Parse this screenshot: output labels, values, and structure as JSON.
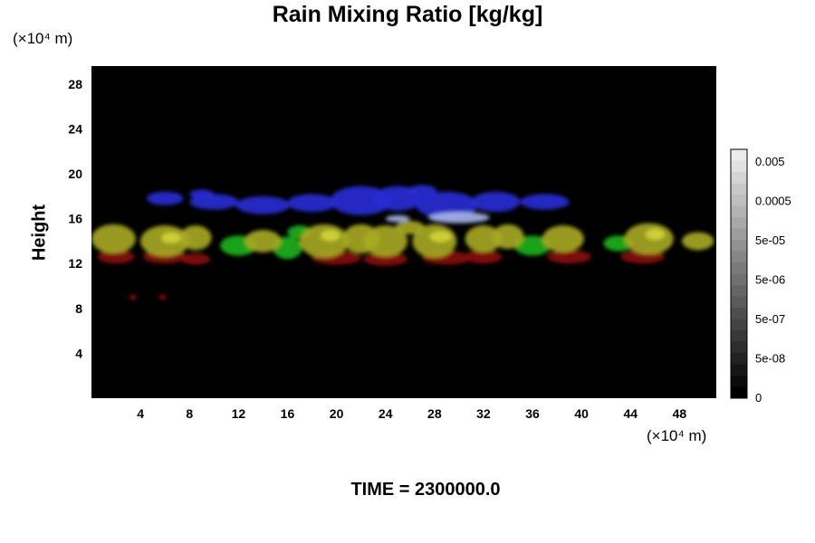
{
  "chart_data": {
    "type": "heatmap",
    "title": "Rain Mixing Ratio [kg/kg]",
    "ylabel": "Height",
    "x_unit_label": "(×10⁴ m)",
    "y_unit_label": "(×10⁴ m)",
    "x_ticks": [
      4,
      8,
      12,
      16,
      20,
      24,
      28,
      32,
      36,
      40,
      44,
      48
    ],
    "y_ticks": [
      4,
      8,
      12,
      16,
      20,
      24,
      28
    ],
    "xlim": [
      0,
      51
    ],
    "ylim": [
      0,
      29.6
    ],
    "colorbar_labels": [
      "0.005",
      "0.0005",
      "5e-05",
      "5e-06",
      "5e-07",
      "5e-08",
      "0"
    ],
    "layers": [
      {
        "name": "blue",
        "color": "#2a2cd6",
        "blobs": [
          {
            "x": 6,
            "y": 17.8,
            "rx": 1.5,
            "ry": 0.6
          },
          {
            "x": 10,
            "y": 17.5,
            "rx": 2.0,
            "ry": 0.7
          },
          {
            "x": 14,
            "y": 17.2,
            "rx": 2.2,
            "ry": 0.8
          },
          {
            "x": 18,
            "y": 17.4,
            "rx": 2.0,
            "ry": 0.8
          },
          {
            "x": 22,
            "y": 17.6,
            "rx": 2.5,
            "ry": 1.3
          },
          {
            "x": 25,
            "y": 17.8,
            "rx": 2.0,
            "ry": 1.1
          },
          {
            "x": 29,
            "y": 17.2,
            "rx": 2.5,
            "ry": 1.2
          },
          {
            "x": 33,
            "y": 17.5,
            "rx": 2.0,
            "ry": 0.9
          },
          {
            "x": 37,
            "y": 17.5,
            "rx": 2.0,
            "ry": 0.7
          },
          {
            "x": 9,
            "y": 18.2,
            "rx": 1.0,
            "ry": 0.4
          },
          {
            "x": 27,
            "y": 18.5,
            "rx": 1.2,
            "ry": 0.5
          }
        ]
      },
      {
        "name": "pale",
        "color": "#a8b6ec",
        "blobs": [
          {
            "x": 30,
            "y": 16.1,
            "rx": 2.5,
            "ry": 0.5
          },
          {
            "x": 25,
            "y": 16.0,
            "rx": 1.0,
            "ry": 0.3
          }
        ]
      },
      {
        "name": "red",
        "color": "#8a0d0d",
        "blobs": [
          {
            "x": 2,
            "y": 12.6,
            "rx": 1.5,
            "ry": 0.6
          },
          {
            "x": 6,
            "y": 12.6,
            "rx": 1.8,
            "ry": 0.6
          },
          {
            "x": 8.5,
            "y": 12.4,
            "rx": 1.2,
            "ry": 0.5
          },
          {
            "x": 20,
            "y": 12.5,
            "rx": 2.0,
            "ry": 0.6
          },
          {
            "x": 24,
            "y": 12.4,
            "rx": 1.8,
            "ry": 0.6
          },
          {
            "x": 29,
            "y": 12.5,
            "rx": 2.0,
            "ry": 0.6
          },
          {
            "x": 32,
            "y": 12.6,
            "rx": 1.5,
            "ry": 0.6
          },
          {
            "x": 39,
            "y": 12.6,
            "rx": 1.8,
            "ry": 0.6
          },
          {
            "x": 45,
            "y": 12.6,
            "rx": 1.8,
            "ry": 0.6
          },
          {
            "x": 3.4,
            "y": 9.0,
            "rx": 0.3,
            "ry": 0.25
          },
          {
            "x": 5.8,
            "y": 9.0,
            "rx": 0.3,
            "ry": 0.25
          }
        ]
      },
      {
        "name": "green",
        "color": "#1fb41f",
        "blobs": [
          {
            "x": 12,
            "y": 13.6,
            "rx": 1.5,
            "ry": 0.9
          },
          {
            "x": 16,
            "y": 13.4,
            "rx": 1.2,
            "ry": 1.0
          },
          {
            "x": 36,
            "y": 13.6,
            "rx": 1.5,
            "ry": 0.9
          },
          {
            "x": 43,
            "y": 13.8,
            "rx": 1.2,
            "ry": 0.7
          },
          {
            "x": 17,
            "y": 14.8,
            "rx": 1.0,
            "ry": 0.6
          }
        ]
      },
      {
        "name": "yellow",
        "color": "#a8aa22",
        "blobs": [
          {
            "x": 1.8,
            "y": 14.2,
            "rx": 1.8,
            "ry": 1.3
          },
          {
            "x": 6,
            "y": 14.0,
            "rx": 2.0,
            "ry": 1.4
          },
          {
            "x": 8.5,
            "y": 14.3,
            "rx": 1.3,
            "ry": 1.1
          },
          {
            "x": 14,
            "y": 14.0,
            "rx": 1.5,
            "ry": 1.0
          },
          {
            "x": 19,
            "y": 14.0,
            "rx": 2.0,
            "ry": 1.5
          },
          {
            "x": 22,
            "y": 14.2,
            "rx": 1.5,
            "ry": 1.3
          },
          {
            "x": 24,
            "y": 14.0,
            "rx": 1.8,
            "ry": 1.4
          },
          {
            "x": 28,
            "y": 14.0,
            "rx": 1.8,
            "ry": 1.5
          },
          {
            "x": 32,
            "y": 14.2,
            "rx": 1.5,
            "ry": 1.2
          },
          {
            "x": 34,
            "y": 14.4,
            "rx": 1.3,
            "ry": 1.1
          },
          {
            "x": 38.5,
            "y": 14.2,
            "rx": 1.7,
            "ry": 1.2
          },
          {
            "x": 45.5,
            "y": 14.2,
            "rx": 2.0,
            "ry": 1.4
          },
          {
            "x": 49.5,
            "y": 14.0,
            "rx": 1.3,
            "ry": 0.8
          },
          {
            "x": 26,
            "y": 15.2,
            "rx": 1.2,
            "ry": 0.6
          }
        ]
      },
      {
        "name": "bright",
        "color": "#d4d43a",
        "blobs": [
          {
            "x": 6.5,
            "y": 14.3,
            "rx": 0.8,
            "ry": 0.5
          },
          {
            "x": 19.5,
            "y": 14.5,
            "rx": 0.8,
            "ry": 0.5
          },
          {
            "x": 28.5,
            "y": 14.4,
            "rx": 0.9,
            "ry": 0.5
          },
          {
            "x": 46,
            "y": 14.6,
            "rx": 0.8,
            "ry": 0.5
          }
        ]
      }
    ]
  },
  "footer": {
    "time_label": "TIME = 2300000.0"
  }
}
